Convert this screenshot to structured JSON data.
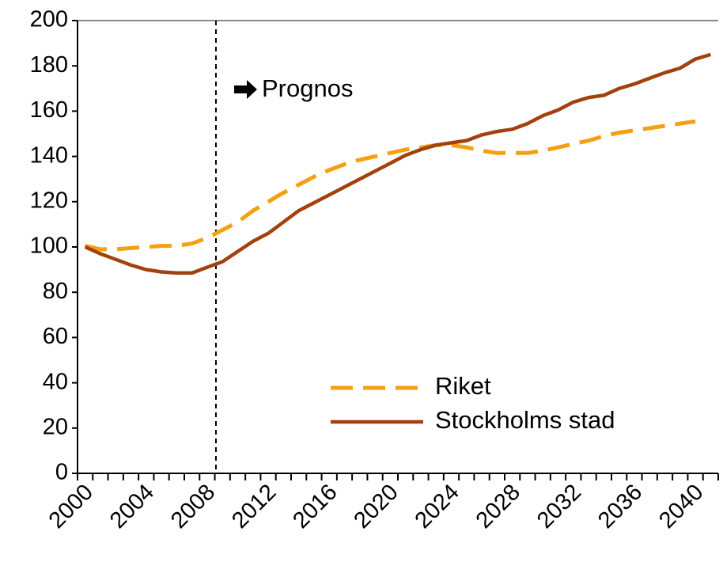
{
  "chart_data": {
    "type": "line",
    "annotation": "Prognos",
    "categories": [
      "2000",
      null,
      null,
      null,
      "2004",
      null,
      null,
      null,
      "2008",
      null,
      null,
      null,
      "2012",
      null,
      null,
      null,
      "2016",
      null,
      null,
      null,
      "2020",
      null,
      null,
      null,
      "2024",
      null,
      null,
      null,
      "2028",
      null,
      null,
      null,
      "2032",
      null,
      null,
      null,
      "2036",
      null,
      null,
      null,
      "2040",
      null
    ],
    "series": [
      {
        "name": "Riket",
        "color": "#f5a00f",
        "dashed": true,
        "values": [
          100.5,
          99,
          99,
          99.5,
          100,
          100.5,
          100.5,
          101.5,
          104,
          107.5,
          111,
          116,
          120,
          124,
          127.5,
          131,
          134,
          136.5,
          138.5,
          140,
          141.5,
          143,
          144,
          145,
          145,
          144,
          142.5,
          141.5,
          141.5,
          141.5,
          142.5,
          144,
          145.5,
          147,
          149,
          150.5,
          151.5,
          152.5,
          153.5,
          154.5,
          155.5,
          null
        ]
      },
      {
        "name": "Stockholms stad",
        "color": "#a3410e",
        "dashed": false,
        "values": [
          100,
          97,
          94.5,
          92,
          90,
          89,
          88.5,
          88.5,
          91,
          93.5,
          98,
          102.5,
          106,
          111,
          116,
          119.5,
          123,
          126.5,
          130,
          133.5,
          137,
          140.5,
          143,
          145,
          146,
          147,
          149.5,
          151,
          152,
          154.5,
          158,
          160.5,
          164,
          166,
          167,
          170,
          172,
          174.5,
          177,
          179,
          183,
          185
        ]
      }
    ],
    "ylim": [
      0,
      200
    ],
    "yticks": [
      0,
      20,
      40,
      60,
      80,
      100,
      120,
      140,
      160,
      180,
      200
    ],
    "grid": false
  }
}
